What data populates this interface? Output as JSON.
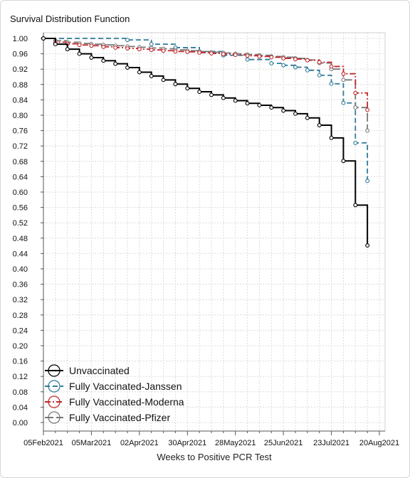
{
  "chart_data": {
    "type": "line",
    "step": true,
    "title": "Survival Distribution Function",
    "xlabel": "Weeks to Positive PCR Test",
    "ylabel": "",
    "ylim": [
      0,
      1.0
    ],
    "yticks": [
      0.0,
      0.04,
      0.08,
      0.12,
      0.16,
      0.2,
      0.24,
      0.28,
      0.32,
      0.36,
      0.4,
      0.44,
      0.48,
      0.52,
      0.56,
      0.6,
      0.64,
      0.68,
      0.72,
      0.76,
      0.8,
      0.84,
      0.88,
      0.92,
      0.96,
      1.0
    ],
    "ytick_labels": [
      "0.00",
      "0.04",
      "0.08",
      "0.12",
      "0.16",
      "0.20",
      "0.24",
      "0.28",
      "0.32",
      "0.36",
      "0.40",
      "0.44",
      "0.48",
      "0.52",
      "0.56",
      "0.60",
      "0.64",
      "0.68",
      "0.72",
      "0.76",
      "0.80",
      "0.84",
      "0.88",
      "0.92",
      "0.96",
      "1.00"
    ],
    "xlim": [
      0,
      28
    ],
    "x_unit": "weeks",
    "xticks": [
      0,
      4,
      8,
      12,
      16,
      20,
      24,
      28
    ],
    "xtick_labels": [
      "05Feb2021",
      "05Mar2021",
      "02Apr2021",
      "30Apr2021",
      "28May2021",
      "25Jun2021",
      "23Jul2021",
      "20Aug2021"
    ],
    "grid": true,
    "legend_position": "bottom-left",
    "series": [
      {
        "name": "Unvaccinated",
        "color": "#000000",
        "dash": "solid",
        "x": [
          0,
          1,
          2,
          3,
          4,
          5,
          6,
          7,
          8,
          9,
          10,
          11,
          12,
          13,
          14,
          15,
          16,
          17,
          18,
          19,
          20,
          21,
          22,
          23,
          24,
          25,
          26,
          27
        ],
        "y": [
          1.0,
          0.985,
          0.972,
          0.96,
          0.95,
          0.942,
          0.934,
          0.924,
          0.912,
          0.902,
          0.892,
          0.881,
          0.87,
          0.861,
          0.853,
          0.845,
          0.838,
          0.831,
          0.826,
          0.82,
          0.812,
          0.804,
          0.793,
          0.774,
          0.741,
          0.681,
          0.566,
          0.461
        ]
      },
      {
        "name": "Fully Vaccinated-Janssen",
        "color": "#2e7a99",
        "dash": "dashed",
        "x": [
          0,
          7,
          9,
          11,
          13,
          15,
          17,
          19,
          20,
          21,
          22,
          23,
          24,
          25,
          26,
          27
        ],
        "y": [
          1.0,
          0.996,
          0.985,
          0.976,
          0.966,
          0.956,
          0.945,
          0.935,
          0.93,
          0.925,
          0.917,
          0.904,
          0.882,
          0.832,
          0.728,
          0.629
        ]
      },
      {
        "name": "Fully Vaccinated-Moderna",
        "color": "#c0282d",
        "dash": "dashdot",
        "x": [
          0,
          1,
          2,
          3,
          4,
          5,
          6,
          7,
          8,
          9,
          10,
          11,
          12,
          13,
          14,
          15,
          16,
          17,
          18,
          19,
          20,
          21,
          22,
          23,
          24,
          25,
          26,
          27
        ],
        "y": [
          1.0,
          0.99,
          0.986,
          0.983,
          0.981,
          0.978,
          0.976,
          0.974,
          0.972,
          0.97,
          0.968,
          0.966,
          0.965,
          0.963,
          0.961,
          0.959,
          0.957,
          0.955,
          0.953,
          0.951,
          0.948,
          0.946,
          0.943,
          0.938,
          0.927,
          0.908,
          0.858,
          0.814
        ]
      },
      {
        "name": "Fully Vaccinated-Pfizer",
        "color": "#777777",
        "dash": "longdash",
        "x": [
          0,
          1,
          2,
          3,
          4,
          5,
          6,
          7,
          8,
          9,
          10,
          11,
          12,
          13,
          14,
          15,
          16,
          17,
          18,
          19,
          20,
          21,
          22,
          23,
          24,
          25,
          26,
          27
        ],
        "y": [
          1.0,
          0.994,
          0.99,
          0.987,
          0.985,
          0.983,
          0.981,
          0.979,
          0.977,
          0.975,
          0.973,
          0.97,
          0.968,
          0.966,
          0.964,
          0.962,
          0.96,
          0.958,
          0.956,
          0.953,
          0.951,
          0.948,
          0.944,
          0.936,
          0.92,
          0.892,
          0.82,
          0.76
        ]
      }
    ]
  }
}
